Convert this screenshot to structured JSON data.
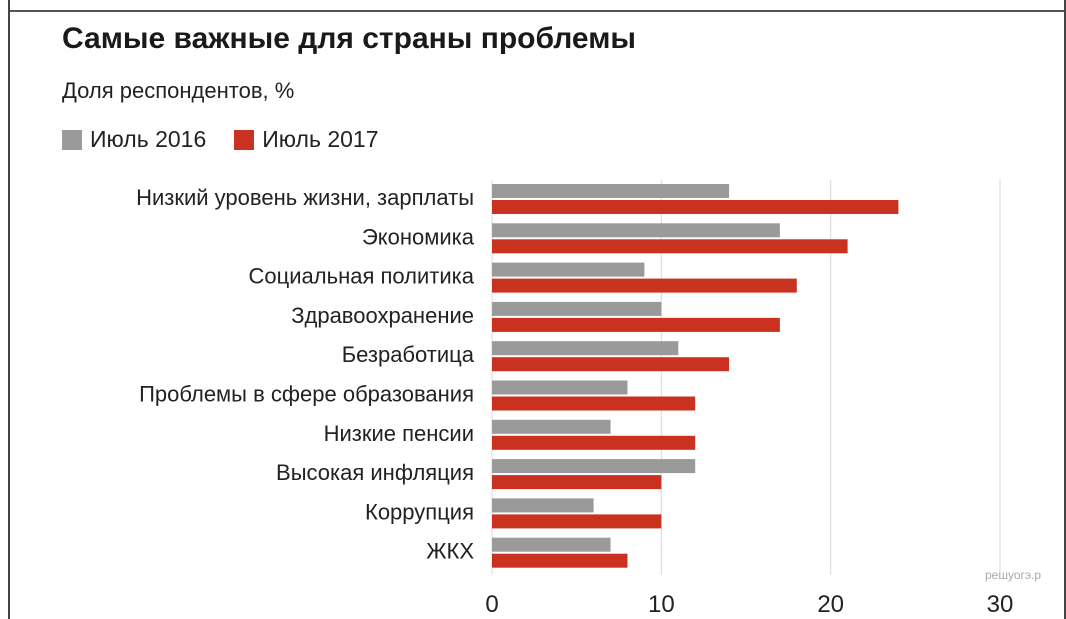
{
  "colors": {
    "series_2016": "#9a9a9a",
    "series_2017": "#c8321e",
    "grid": "#d9d9d9"
  },
  "watermark": "решуогэ.р",
  "chart_data": {
    "type": "bar",
    "orientation": "horizontal",
    "title": "Самые важные для страны проблемы",
    "subtitle": "Доля респондентов, %",
    "legend_placement": "top-left",
    "categories": [
      "Низкий уровень жизни, зарплаты",
      "Экономика",
      "Социальная политика",
      "Здравоохранение",
      "Безработица",
      "Проблемы в сфере образования",
      "Низкие пенсии",
      "Высокая инфляция",
      "Коррупция",
      "ЖКХ"
    ],
    "series": [
      {
        "name": "Июль 2016",
        "values": [
          14,
          17,
          9,
          10,
          11,
          8,
          7,
          12,
          6,
          7
        ]
      },
      {
        "name": "Июль 2017",
        "values": [
          24,
          21,
          18,
          17,
          14,
          12,
          12,
          10,
          10,
          8
        ]
      }
    ],
    "xlim": [
      0,
      30
    ],
    "xticks": [
      "0",
      "10",
      "20",
      "30"
    ],
    "grid": true
  }
}
